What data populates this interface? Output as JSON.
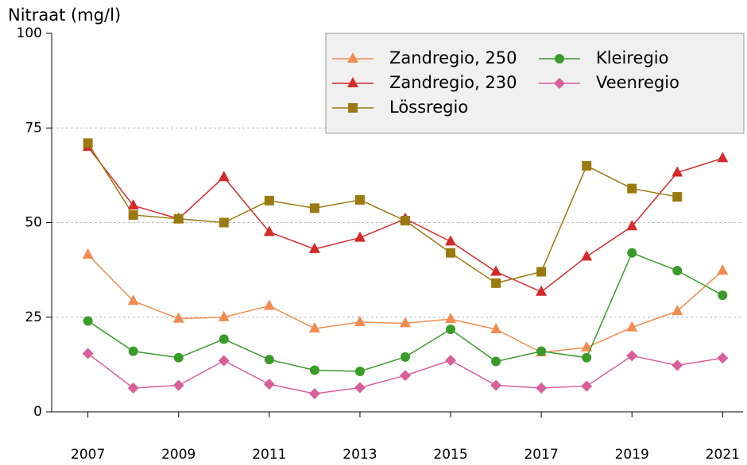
{
  "chart_data": {
    "type": "line",
    "y_label": "Nitraat (mg/l)",
    "x": [
      2007,
      2008,
      2009,
      2010,
      2011,
      2012,
      2013,
      2014,
      2015,
      2016,
      2017,
      2018,
      2019,
      2020,
      2021
    ],
    "xlim": [
      2006.2,
      2021.45
    ],
    "xticks": [
      2007,
      2009,
      2011,
      2013,
      2015,
      2017,
      2019,
      2021
    ],
    "ylim": [
      0,
      100
    ],
    "yticks": [
      0,
      25,
      50,
      75,
      100
    ],
    "grid": true,
    "legend": "top right",
    "series": [
      {
        "name": "Zandregio, 250",
        "color": "#f08c50",
        "marker": "triangle",
        "values": [
          41.5,
          29.3,
          24.6,
          25,
          28,
          22,
          23.7,
          23.4,
          24.5,
          21.8,
          15.7,
          17,
          22.3,
          26.6,
          37.3
        ]
      },
      {
        "name": "Zandregio, 230",
        "color": "#d42a2a",
        "marker": "triangle",
        "values": [
          70,
          54.5,
          51,
          62,
          47.5,
          43,
          46,
          51,
          45,
          37,
          31.7,
          41,
          49,
          63.2,
          67
        ]
      },
      {
        "name": "Lössregio",
        "color": "#9a7a10",
        "marker": "square",
        "values": [
          71,
          52,
          51,
          50,
          55.8,
          53.8,
          56,
          50.5,
          42,
          34,
          37,
          65,
          59,
          56.8,
          null
        ]
      },
      {
        "name": "Kleiregio",
        "color": "#3a9a2a",
        "marker": "circle",
        "values": [
          24,
          16,
          14.3,
          19.2,
          13.8,
          11,
          10.7,
          14.5,
          21.8,
          13.3,
          16,
          14.3,
          42,
          37.3,
          30.8
        ]
      },
      {
        "name": "Veenregio",
        "color": "#d8609a",
        "marker": "diamond",
        "values": [
          15.4,
          6.3,
          7,
          13.5,
          7.3,
          4.8,
          6.4,
          9.6,
          13.6,
          7,
          6.3,
          6.8,
          14.8,
          12.3,
          14.2
        ]
      }
    ]
  }
}
